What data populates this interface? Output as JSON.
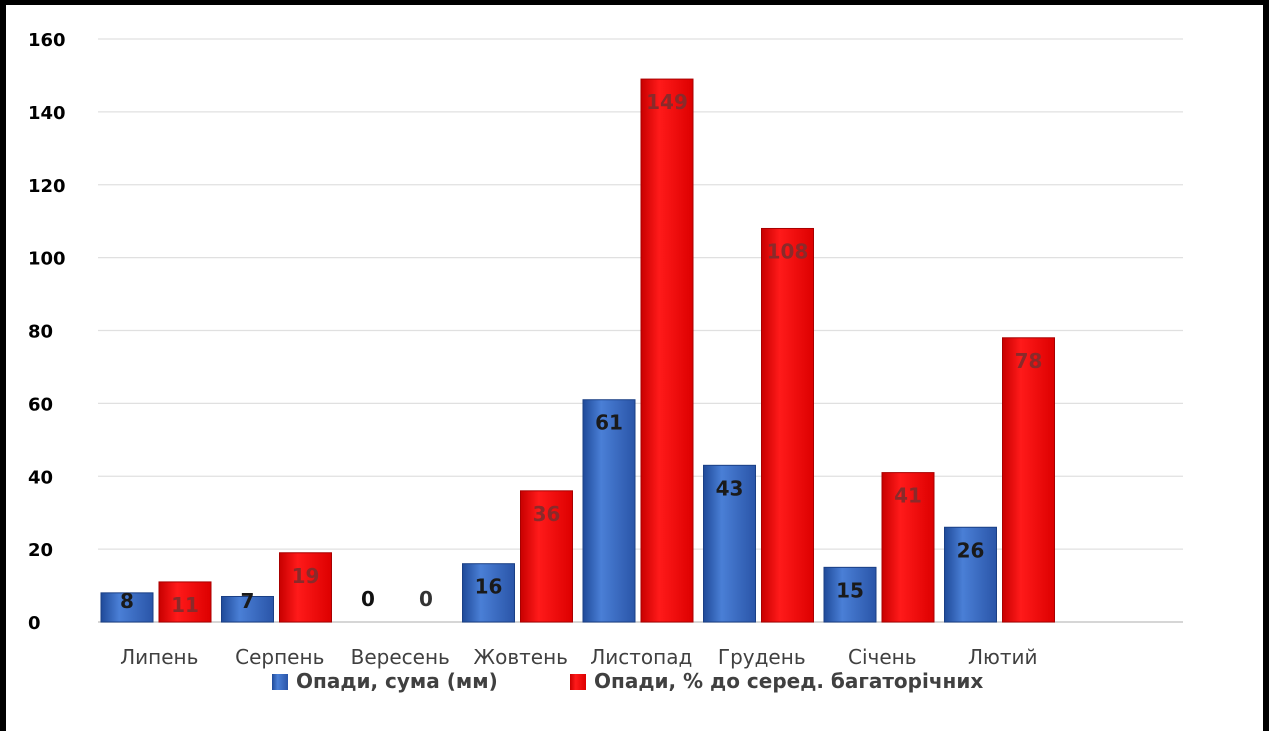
{
  "chart_data": {
    "type": "bar",
    "categories": [
      "Липень",
      "Серпень",
      "Вересень",
      "Жовтень",
      "Листопад",
      "Грудень",
      "Січень",
      "Лютий"
    ],
    "series": [
      {
        "name": "Опади, сума (мм)",
        "values": [
          8,
          7,
          0,
          16,
          61,
          43,
          15,
          26
        ],
        "color": "#2f5fb8",
        "label_color": "#1a1a1a"
      },
      {
        "name": "Опади, % до серед. багаторічних",
        "values": [
          11,
          19,
          0,
          36,
          149,
          108,
          41,
          78
        ],
        "color": "#ee0000",
        "label_color": "#8a2a2a"
      }
    ],
    "ylim": [
      0,
      160
    ],
    "yticks": [
      0,
      20,
      40,
      60,
      80,
      100,
      120,
      140,
      160
    ],
    "grid": true,
    "legend_position": "bottom",
    "data_labels": true
  }
}
